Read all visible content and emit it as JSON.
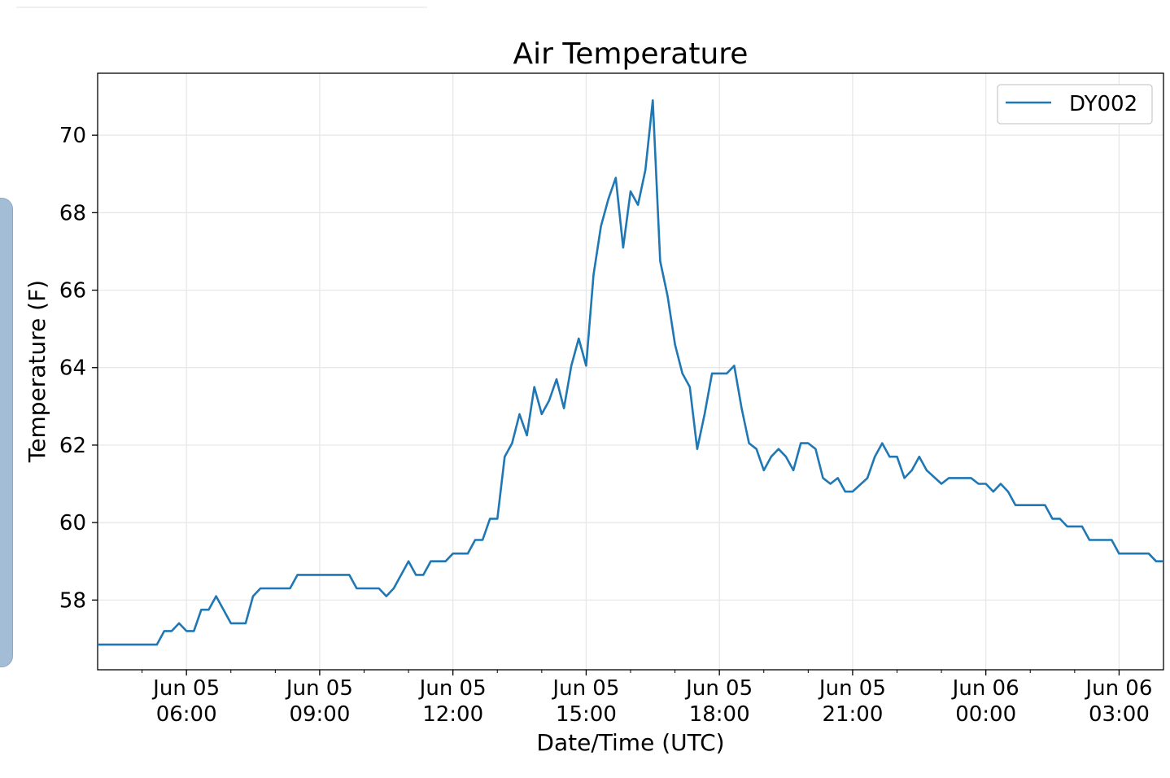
{
  "chart_data": {
    "type": "line",
    "title": "Air Temperature",
    "xlabel": "Date/Time (UTC)",
    "ylabel": "Temperature (F)",
    "x_unit": "UTC date-time",
    "xlim": [
      "2020-06-05T04:00",
      "2020-06-06T04:00"
    ],
    "ylim": [
      56.2,
      71.6
    ],
    "y_ticks": [
      58,
      60,
      62,
      64,
      66,
      68,
      70
    ],
    "x_ticks": [
      {
        "t": "2020-06-05T06:00",
        "line1": "Jun 05",
        "line2": "06:00"
      },
      {
        "t": "2020-06-05T09:00",
        "line1": "Jun 05",
        "line2": "09:00"
      },
      {
        "t": "2020-06-05T12:00",
        "line1": "Jun 05",
        "line2": "12:00"
      },
      {
        "t": "2020-06-05T15:00",
        "line1": "Jun 05",
        "line2": "15:00"
      },
      {
        "t": "2020-06-05T18:00",
        "line1": "Jun 05",
        "line2": "18:00"
      },
      {
        "t": "2020-06-05T21:00",
        "line1": "Jun 05",
        "line2": "21:00"
      },
      {
        "t": "2020-06-06T00:00",
        "line1": "Jun 06",
        "line2": "00:00"
      },
      {
        "t": "2020-06-06T03:00",
        "line1": "Jun 06",
        "line2": "03:00"
      }
    ],
    "grid": true,
    "legend_position": "top-right",
    "series": [
      {
        "name": "DY002",
        "color": "#1f77b4",
        "points": [
          [
            "2020-06-05T04:00",
            56.85
          ],
          [
            "2020-06-05T05:20",
            56.85
          ],
          [
            "2020-06-05T05:30",
            57.2
          ],
          [
            "2020-06-05T05:40",
            57.2
          ],
          [
            "2020-06-05T05:50",
            57.4
          ],
          [
            "2020-06-05T06:00",
            57.2
          ],
          [
            "2020-06-05T06:10",
            57.2
          ],
          [
            "2020-06-05T06:20",
            57.75
          ],
          [
            "2020-06-05T06:30",
            57.75
          ],
          [
            "2020-06-05T06:40",
            58.1
          ],
          [
            "2020-06-05T06:50",
            57.75
          ],
          [
            "2020-06-05T07:00",
            57.4
          ],
          [
            "2020-06-05T07:20",
            57.4
          ],
          [
            "2020-06-05T07:30",
            58.1
          ],
          [
            "2020-06-05T07:40",
            58.3
          ],
          [
            "2020-06-05T08:20",
            58.3
          ],
          [
            "2020-06-05T08:30",
            58.65
          ],
          [
            "2020-06-05T09:40",
            58.65
          ],
          [
            "2020-06-05T09:50",
            58.3
          ],
          [
            "2020-06-05T10:20",
            58.3
          ],
          [
            "2020-06-05T10:30",
            58.1
          ],
          [
            "2020-06-05T10:40",
            58.3
          ],
          [
            "2020-06-05T10:50",
            58.65
          ],
          [
            "2020-06-05T11:00",
            59.0
          ],
          [
            "2020-06-05T11:10",
            58.65
          ],
          [
            "2020-06-05T11:20",
            58.65
          ],
          [
            "2020-06-05T11:30",
            59.0
          ],
          [
            "2020-06-05T11:50",
            59.0
          ],
          [
            "2020-06-05T12:00",
            59.2
          ],
          [
            "2020-06-05T12:20",
            59.2
          ],
          [
            "2020-06-05T12:30",
            59.55
          ],
          [
            "2020-06-05T12:40",
            59.55
          ],
          [
            "2020-06-05T12:50",
            60.1
          ],
          [
            "2020-06-05T13:00",
            60.1
          ],
          [
            "2020-06-05T13:10",
            61.7
          ],
          [
            "2020-06-05T13:20",
            62.05
          ],
          [
            "2020-06-05T13:30",
            62.8
          ],
          [
            "2020-06-05T13:40",
            62.25
          ],
          [
            "2020-06-05T13:50",
            63.5
          ],
          [
            "2020-06-05T14:00",
            62.8
          ],
          [
            "2020-06-05T14:10",
            63.15
          ],
          [
            "2020-06-05T14:20",
            63.7
          ],
          [
            "2020-06-05T14:30",
            62.95
          ],
          [
            "2020-06-05T14:40",
            64.05
          ],
          [
            "2020-06-05T14:50",
            64.75
          ],
          [
            "2020-06-05T15:00",
            64.05
          ],
          [
            "2020-06-05T15:10",
            66.4
          ],
          [
            "2020-06-05T15:20",
            67.65
          ],
          [
            "2020-06-05T15:30",
            68.35
          ],
          [
            "2020-06-05T15:40",
            68.9
          ],
          [
            "2020-06-05T15:50",
            67.1
          ],
          [
            "2020-06-05T16:00",
            68.55
          ],
          [
            "2020-06-05T16:10",
            68.2
          ],
          [
            "2020-06-05T16:20",
            69.1
          ],
          [
            "2020-06-05T16:30",
            70.9
          ],
          [
            "2020-06-05T16:40",
            66.75
          ],
          [
            "2020-06-05T16:50",
            65.85
          ],
          [
            "2020-06-05T17:00",
            64.6
          ],
          [
            "2020-06-05T17:10",
            63.85
          ],
          [
            "2020-06-05T17:20",
            63.5
          ],
          [
            "2020-06-05T17:30",
            61.9
          ],
          [
            "2020-06-05T17:40",
            62.8
          ],
          [
            "2020-06-05T17:50",
            63.85
          ],
          [
            "2020-06-05T18:10",
            63.85
          ],
          [
            "2020-06-05T18:20",
            64.05
          ],
          [
            "2020-06-05T18:30",
            62.95
          ],
          [
            "2020-06-05T18:40",
            62.05
          ],
          [
            "2020-06-05T18:50",
            61.9
          ],
          [
            "2020-06-05T19:00",
            61.35
          ],
          [
            "2020-06-05T19:10",
            61.7
          ],
          [
            "2020-06-05T19:20",
            61.9
          ],
          [
            "2020-06-05T19:30",
            61.7
          ],
          [
            "2020-06-05T19:40",
            61.35
          ],
          [
            "2020-06-05T19:50",
            62.05
          ],
          [
            "2020-06-05T20:00",
            62.05
          ],
          [
            "2020-06-05T20:10",
            61.9
          ],
          [
            "2020-06-05T20:20",
            61.15
          ],
          [
            "2020-06-05T20:30",
            61.0
          ],
          [
            "2020-06-05T20:40",
            61.15
          ],
          [
            "2020-06-05T20:50",
            60.8
          ],
          [
            "2020-06-05T21:00",
            60.8
          ],
          [
            "2020-06-05T21:20",
            61.15
          ],
          [
            "2020-06-05T21:30",
            61.7
          ],
          [
            "2020-06-05T21:40",
            62.05
          ],
          [
            "2020-06-05T21:50",
            61.7
          ],
          [
            "2020-06-05T22:00",
            61.7
          ],
          [
            "2020-06-05T22:10",
            61.15
          ],
          [
            "2020-06-05T22:20",
            61.35
          ],
          [
            "2020-06-05T22:30",
            61.7
          ],
          [
            "2020-06-05T22:40",
            61.35
          ],
          [
            "2020-06-05T23:00",
            61.0
          ],
          [
            "2020-06-05T23:10",
            61.15
          ],
          [
            "2020-06-05T23:40",
            61.15
          ],
          [
            "2020-06-05T23:50",
            61.0
          ],
          [
            "2020-06-06T00:00",
            61.0
          ],
          [
            "2020-06-06T00:10",
            60.8
          ],
          [
            "2020-06-06T00:20",
            61.0
          ],
          [
            "2020-06-06T00:30",
            60.8
          ],
          [
            "2020-06-06T00:40",
            60.45
          ],
          [
            "2020-06-06T01:20",
            60.45
          ],
          [
            "2020-06-06T01:30",
            60.1
          ],
          [
            "2020-06-06T01:40",
            60.1
          ],
          [
            "2020-06-06T01:50",
            59.9
          ],
          [
            "2020-06-06T02:10",
            59.9
          ],
          [
            "2020-06-06T02:20",
            59.55
          ],
          [
            "2020-06-06T02:50",
            59.55
          ],
          [
            "2020-06-06T03:00",
            59.2
          ],
          [
            "2020-06-06T03:40",
            59.2
          ],
          [
            "2020-06-06T03:50",
            59.0
          ],
          [
            "2020-06-06T04:00",
            59.0
          ]
        ]
      }
    ]
  }
}
